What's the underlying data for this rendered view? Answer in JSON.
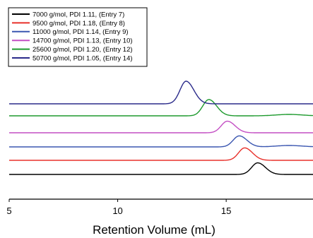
{
  "chart_data": {
    "type": "line",
    "title": "",
    "xlabel": "Retention Volume (mL)",
    "ylabel": "",
    "xlim": [
      5,
      19
    ],
    "x_ticks": [
      5,
      10,
      15
    ],
    "x_tick_labels": [
      "5",
      "10",
      "15"
    ],
    "grid": false,
    "legend_position": "top-left",
    "series": [
      {
        "name": "7000 g/mol,  PDI 1.11, (Entry 7)",
        "color": "#000000",
        "baseline": 0.0,
        "peak_x": 16.45,
        "peak_height": 0.82,
        "tail": 0.0
      },
      {
        "name": "9500 g/mol, PDI 1.18, (Entry 8)",
        "color": "#e8302a",
        "baseline": 1.0,
        "peak_x": 15.85,
        "peak_height": 0.88,
        "tail": 0.0
      },
      {
        "name": "11000 g/mol, PDI 1.14, (Entry 9)",
        "color": "#3a56b0",
        "baseline": 1.95,
        "peak_x": 15.6,
        "peak_height": 0.78,
        "tail": 0.1
      },
      {
        "name": "14700 g/mol, PDI 1.13, (Entry 10)",
        "color": "#c44fc4",
        "baseline": 2.95,
        "peak_x": 15.05,
        "peak_height": 0.82,
        "tail": 0.0
      },
      {
        "name": "25600 g/mol, PDI 1.20, (Entry 12)",
        "color": "#1e9a2e",
        "baseline": 4.15,
        "peak_x": 14.2,
        "peak_height": 1.15,
        "tail": 0.1
      },
      {
        "name": "50700 g/mol, PDI 1.05, (Entry 14)",
        "color": "#2a2a8a",
        "baseline": 5.0,
        "peak_x": 13.15,
        "peak_height": 1.6,
        "tail": 0.0
      }
    ]
  }
}
